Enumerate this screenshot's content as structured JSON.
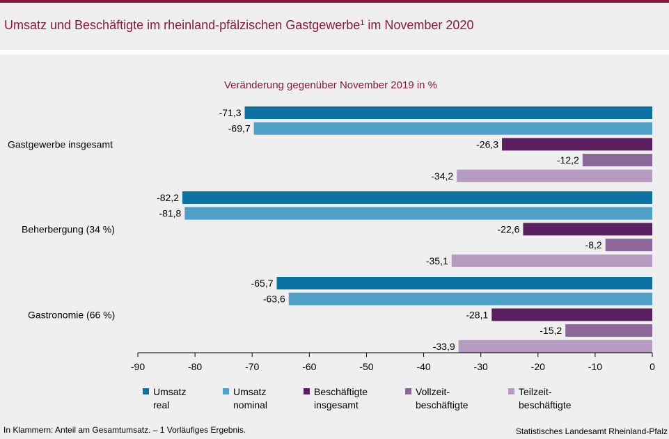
{
  "title": {
    "text": "Umsatz und Beschäftigte im rheinland-pfälzischen Gastgewerbe",
    "sup": "1",
    "suffix": " im November 2020"
  },
  "chart_data": {
    "type": "bar",
    "orientation": "horizontal",
    "subtitle": "Veränderung gegenüber November 2019 in %",
    "categories": [
      "Gastgewerbe insgesamt",
      "Beherbergung (34 %)",
      "Gastronomie (66 %)"
    ],
    "series": [
      {
        "name": "Umsatz real",
        "legend_lines": [
          "Umsatz",
          "real"
        ],
        "color": "#0c71a3",
        "values": [
          -71.3,
          -82.2,
          -65.7
        ],
        "labels": [
          "-71,3",
          "-82,2",
          "-65,7"
        ]
      },
      {
        "name": "Umsatz nominal",
        "legend_lines": [
          "Umsatz",
          "nominal"
        ],
        "color": "#4ea0c7",
        "values": [
          -69.7,
          -81.8,
          -63.6
        ],
        "labels": [
          "-69,7",
          "-81,8",
          "-63,6"
        ]
      },
      {
        "name": "Beschäftigte insgesamt",
        "legend_lines": [
          "Beschäftigte",
          "insgesamt"
        ],
        "color": "#5a1f5e",
        "values": [
          -26.3,
          -22.6,
          -28.1
        ],
        "labels": [
          "-26,3",
          "-22,6",
          "-28,1"
        ]
      },
      {
        "name": "Vollzeitbeschäftigte",
        "legend_lines": [
          "Vollzeit-",
          "beschäftigte"
        ],
        "color": "#8c6799",
        "values": [
          -12.2,
          -8.2,
          -15.2
        ],
        "labels": [
          "-12,2",
          "-8,2",
          "-15,2"
        ]
      },
      {
        "name": "Teilzeitbeschäftigte",
        "legend_lines": [
          "Teilzeit-",
          "beschäftigte"
        ],
        "color": "#b49bbf",
        "values": [
          -34.2,
          -35.1,
          -33.9
        ],
        "labels": [
          "-34,2",
          "-35,1",
          "-33,9"
        ]
      }
    ],
    "xlim": [
      -90,
      0
    ],
    "xticks": [
      -90,
      -80,
      -70,
      -60,
      -50,
      -40,
      -30,
      -20,
      -10,
      0
    ],
    "grid": false,
    "legend_position": "bottom"
  },
  "footnote": "In Klammern: Anteil am Gesamtumsatz. – 1 Vorläufiges Ergebnis.",
  "source": "Statistisches Landesamt Rheinland-Pfalz"
}
